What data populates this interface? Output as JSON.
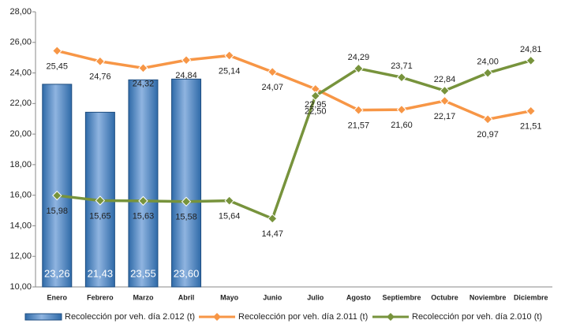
{
  "chart_data": {
    "type": "bar",
    "categories": [
      "Enero",
      "Febrero",
      "Marzo",
      "Abril",
      "Mayo",
      "Junio",
      "Julio",
      "Agosto",
      "Septiembre",
      "Octubre",
      "Noviembre",
      "Diciembre"
    ],
    "series": [
      {
        "name": "Recolección por veh. día 2.012 (t)",
        "type": "bar",
        "color": "#4f81bd",
        "values": [
          23.26,
          21.43,
          23.55,
          23.6,
          null,
          null,
          null,
          null,
          null,
          null,
          null,
          null
        ],
        "value_labels": [
          "23,26",
          "21,43",
          "23,55",
          "23,60",
          null,
          null,
          null,
          null,
          null,
          null,
          null,
          null
        ]
      },
      {
        "name": "Recolección por veh. día 2.011 (t)",
        "type": "line",
        "color": "#f79646",
        "values": [
          25.45,
          24.76,
          24.32,
          24.84,
          25.14,
          24.07,
          22.95,
          21.57,
          21.6,
          22.17,
          20.97,
          21.51
        ],
        "value_labels": [
          "25,45",
          "24,76",
          "24,32",
          "24,84",
          "25,14",
          "24,07",
          "22,95",
          "21,57",
          "21,60",
          "22,17",
          "20,97",
          "21,51"
        ]
      },
      {
        "name": "Recolección por veh. día 2.010 (t)",
        "type": "line",
        "color": "#77933c",
        "values": [
          15.98,
          15.65,
          15.63,
          15.58,
          15.64,
          14.47,
          22.5,
          24.29,
          23.71,
          22.84,
          24.0,
          24.81
        ],
        "value_labels": [
          "15,98",
          "15,65",
          "15,63",
          "15,58",
          "15,64",
          "14,47",
          "22,50",
          "24,29",
          "23,71",
          "22,84",
          "24,00",
          "24,81"
        ]
      }
    ],
    "ylim": [
      10,
      28
    ],
    "yticks": [
      {
        "value": 10,
        "label": "10,00"
      },
      {
        "value": 12,
        "label": "12,00"
      },
      {
        "value": 14,
        "label": "14,00"
      },
      {
        "value": 16,
        "label": "16,00"
      },
      {
        "value": 18,
        "label": "18,00"
      },
      {
        "value": 20,
        "label": "20,00"
      },
      {
        "value": 22,
        "label": "22,00"
      },
      {
        "value": 24,
        "label": "24,00"
      },
      {
        "value": 26,
        "label": "26,00"
      },
      {
        "value": 28,
        "label": "28,00"
      }
    ],
    "grid": false,
    "legend": "bottom"
  }
}
